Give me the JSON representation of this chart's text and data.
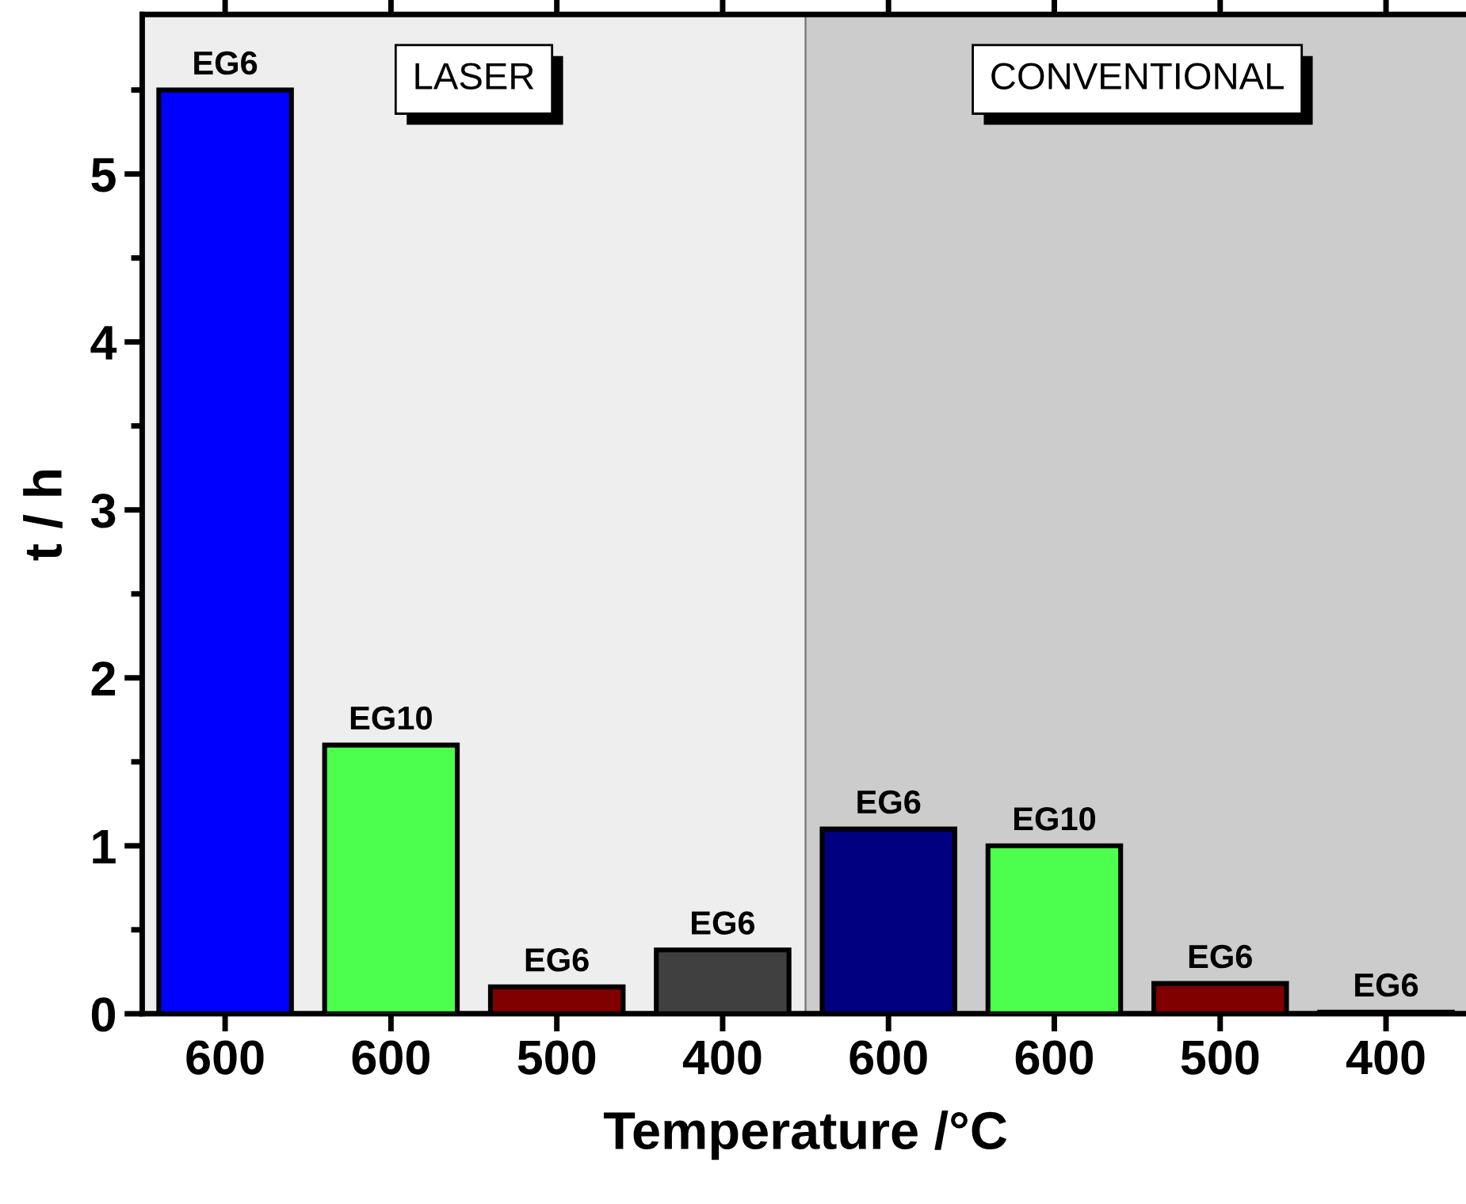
{
  "chart_data": {
    "type": "bar",
    "xlabel": "Temperature /°C",
    "ylabel": "t / h",
    "categories": [
      "600",
      "600",
      "500",
      "400",
      "600",
      "600",
      "500",
      "400"
    ],
    "values": [
      5.5,
      1.6,
      0.16,
      0.38,
      1.1,
      1.0,
      0.18,
      0.01
    ],
    "colors": [
      "#0000ff",
      "#4dff4d",
      "#800000",
      "#404040",
      "#000080",
      "#4dff4d",
      "#800000",
      "#800000"
    ],
    "value_labels": [
      "EG6",
      "EG10",
      "EG6",
      "EG6",
      "EG6",
      "EG10",
      "EG6",
      "EG6"
    ],
    "ylim": [
      0,
      5.95
    ],
    "yticks": [
      0,
      1,
      2,
      3,
      4,
      5
    ],
    "annotations": [
      "LASER",
      "CONVENTIONAL"
    ],
    "grid": false,
    "legend": false
  }
}
